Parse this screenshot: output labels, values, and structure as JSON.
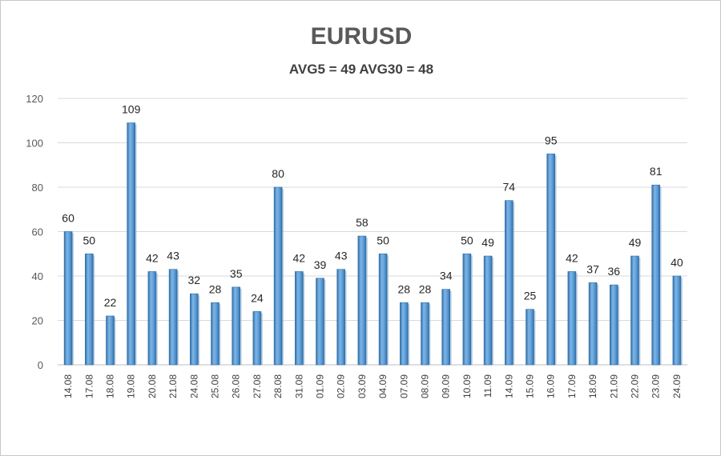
{
  "chart_data": {
    "type": "bar",
    "title": "EURUSD",
    "subtitle": "AVG5 = 49 AVG30 = 48",
    "categories": [
      "14.08",
      "17.08",
      "18.08",
      "19.08",
      "20.08",
      "21.08",
      "24.08",
      "25.08",
      "26.08",
      "27.08",
      "28.08",
      "31.08",
      "01.09",
      "02.09",
      "03.09",
      "04.09",
      "07.09",
      "08.09",
      "09.09",
      "10.09",
      "11.09",
      "14.09",
      "15.09",
      "16.09",
      "17.09",
      "18.09",
      "21.09",
      "22.09",
      "23.09",
      "24.09"
    ],
    "values": [
      60,
      50,
      22,
      109,
      42,
      43,
      32,
      28,
      35,
      24,
      80,
      42,
      39,
      43,
      58,
      50,
      28,
      28,
      34,
      50,
      49,
      74,
      25,
      95,
      42,
      37,
      36,
      49,
      81,
      40
    ],
    "yticks": [
      0,
      20,
      40,
      60,
      80,
      100,
      120
    ],
    "ylim": [
      0,
      120
    ],
    "grid": true,
    "data_labels": true,
    "colors": {
      "bar": "#5b9bd5",
      "bar_dark": "#2e6ea6",
      "grid": "#d9d9d9"
    }
  }
}
